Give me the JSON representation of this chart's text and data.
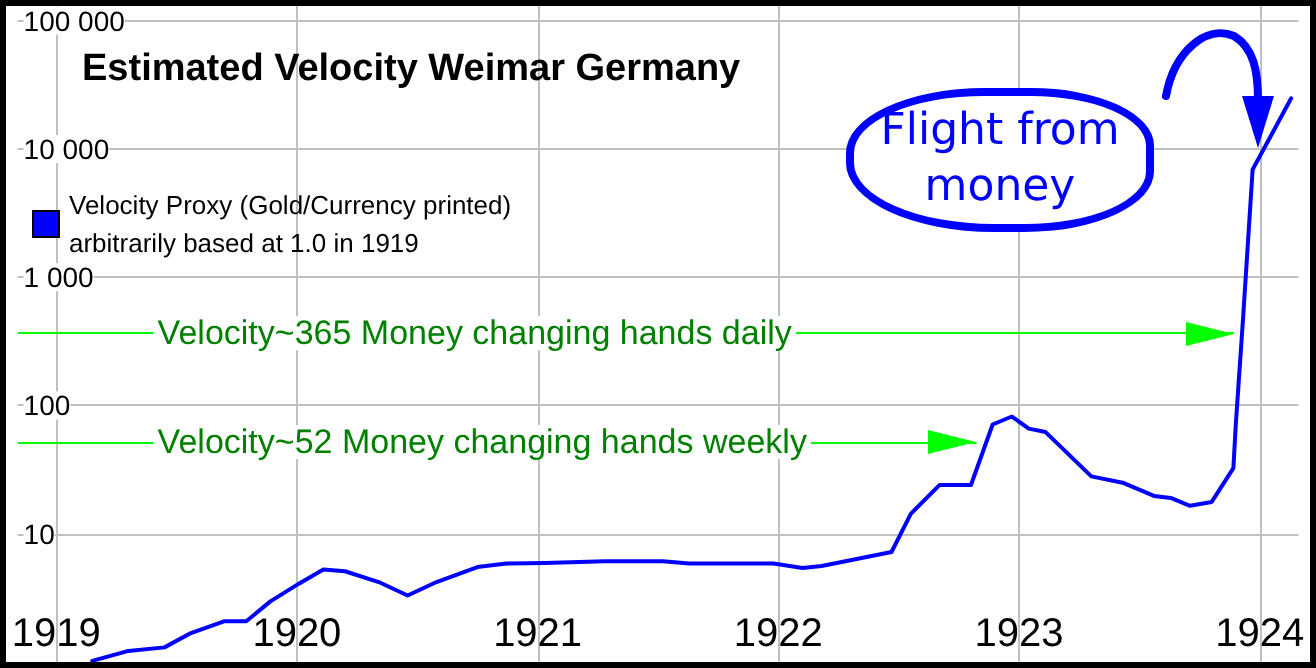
{
  "chart_data": {
    "type": "line",
    "title": "Estimated Velocity Weimar Germany",
    "x": [
      1919.15,
      1919.3,
      1919.45,
      1919.56,
      1919.7,
      1919.79,
      1919.89,
      1920.01,
      1920.11,
      1920.2,
      1920.34,
      1920.46,
      1920.58,
      1920.75,
      1920.87,
      1921.03,
      1921.28,
      1921.52,
      1921.63,
      1921.98,
      1922.1,
      1922.18,
      1922.47,
      1922.55,
      1922.67,
      1922.8,
      1922.89,
      1922.97,
      1923.04,
      1923.11,
      1923.3,
      1923.43,
      1923.56,
      1923.63,
      1923.71,
      1923.8,
      1923.89,
      1923.9,
      1923.93,
      1923.97,
      1924.13
    ],
    "series": [
      {
        "name": "Velocity Proxy (Gold/Currency printed) arbitrarily based at 1.0 in 1919",
        "color": "#0000ff",
        "values": [
          1.02,
          1.22,
          1.3,
          1.68,
          2.08,
          2.08,
          2.97,
          4.1,
          5.26,
          5.1,
          4.2,
          3.3,
          4.2,
          5.5,
          5.85,
          5.9,
          6.1,
          6.1,
          5.85,
          5.85,
          5.4,
          5.6,
          7.2,
          14.3,
          24,
          24,
          71,
          82,
          66,
          62,
          28,
          25,
          19.7,
          19,
          16.5,
          17.7,
          32.5,
          71,
          470,
          6900,
          24800
        ]
      }
    ],
    "xlim": [
      1918.84,
      1924.16
    ],
    "xticks": [
      1919,
      1920,
      1921,
      1922,
      1923,
      1924
    ],
    "ylim": [
      1,
      130000
    ],
    "yticks": [
      10,
      100,
      {
        "value": 1000,
        "label": "1 000"
      },
      {
        "value": 10000,
        "label": "10 000"
      },
      {
        "value": 100000,
        "label": "100 000"
      }
    ],
    "log": "y",
    "grid": true,
    "legend": "top left",
    "marker": "none",
    "line_style": "solid",
    "ref_lines": [
      {
        "axis": "y",
        "value": 365,
        "label": "Velocity~365 Money changing hands daily",
        "color": "#00ff00"
      },
      {
        "axis": "y",
        "value": 52,
        "label": "Velocity~52 Money changing hands weekly",
        "color": "#00ff00"
      }
    ],
    "annotations": [
      "Flight from money"
    ]
  }
}
